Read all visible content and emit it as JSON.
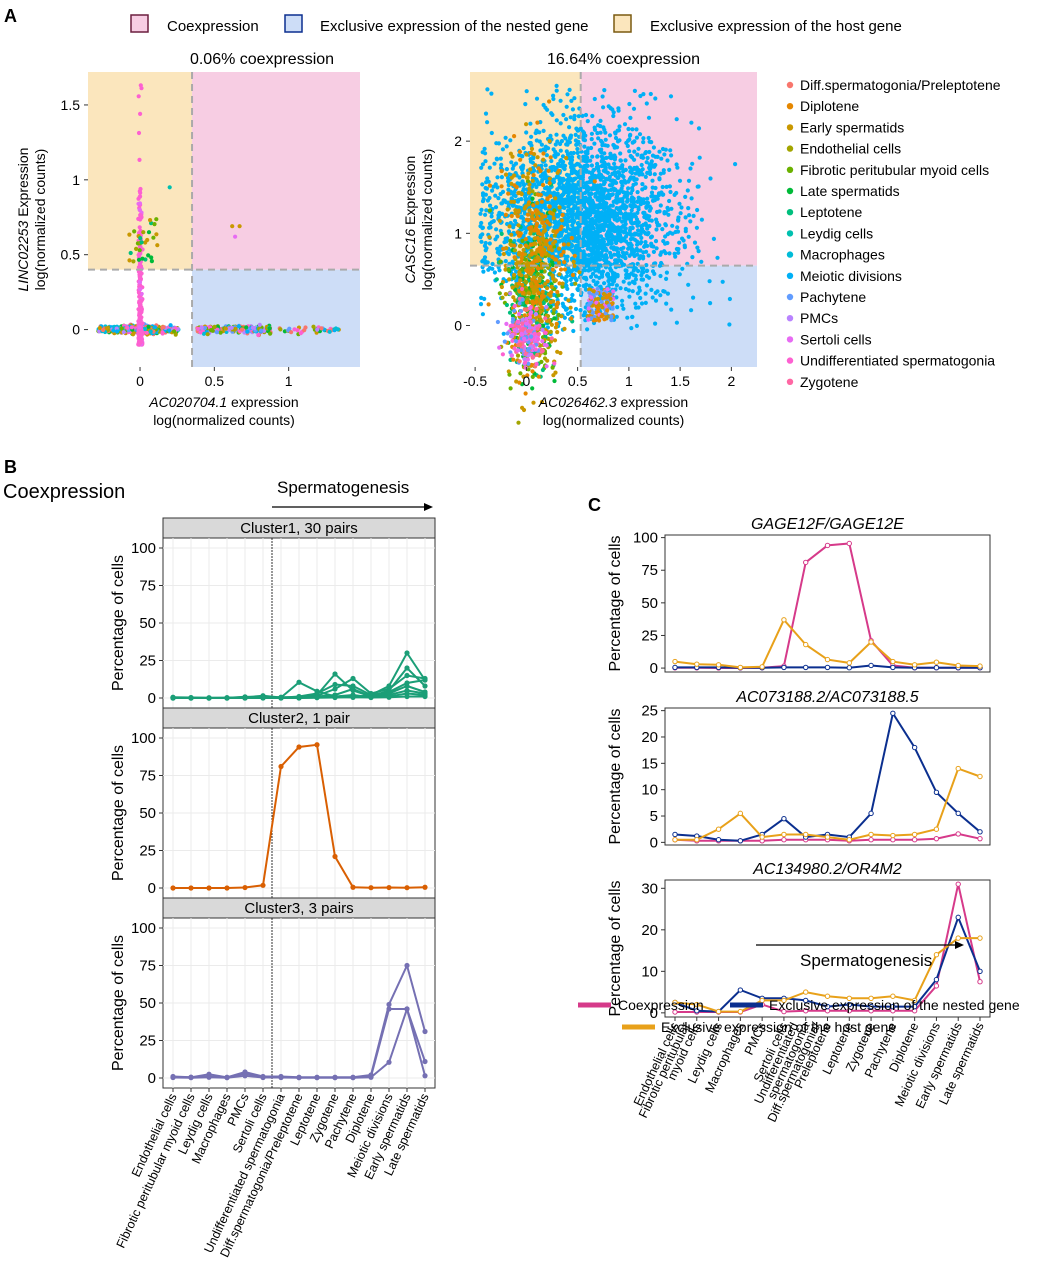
{
  "panel_labels": {
    "a": "A",
    "b": "B",
    "c": "C"
  },
  "colors": {
    "coexpression": "#d63a8a",
    "nested": "#0b2f8f",
    "host": "#e8a11a",
    "coexp_region": "#f7cde3",
    "nested_region": "#cdddf7",
    "host_region": "#fbe6bd",
    "cluster1": "#1b9e77",
    "cluster2": "#d95f02",
    "cluster3": "#7570b3",
    "strip": "#d9d9d9"
  },
  "legend_top": {
    "items": [
      "Coexpression",
      "Exclusive expression of the nested gene",
      "Exclusive expression of the host gene"
    ]
  },
  "cell_type_legend": {
    "items": [
      {
        "label": "Diff.spermatogonia/Preleptotene",
        "color": "#f8766d"
      },
      {
        "label": "Diplotene",
        "color": "#e58700"
      },
      {
        "label": "Early spermatids",
        "color": "#c99800"
      },
      {
        "label": "Endothelial cells",
        "color": "#a3a500"
      },
      {
        "label": "Fibrotic peritubular myoid cells",
        "color": "#6bb100"
      },
      {
        "label": "Late spermatids",
        "color": "#00ba38"
      },
      {
        "label": "Leptotene",
        "color": "#00bf7d"
      },
      {
        "label": "Leydig cells",
        "color": "#00c0af"
      },
      {
        "label": "Macrophages",
        "color": "#00bcd8"
      },
      {
        "label": "Meiotic divisions",
        "color": "#00b0f6"
      },
      {
        "label": "Pachytene",
        "color": "#619cff"
      },
      {
        "label": "PMCs",
        "color": "#b983ff"
      },
      {
        "label": "Sertoli cells",
        "color": "#e76bf3"
      },
      {
        "label": "Undifferentiated spermatogonia",
        "color": "#fd61d1"
      },
      {
        "label": "Zygotene",
        "color": "#ff67a4"
      }
    ]
  },
  "text": {
    "b_heading": "Coexpression",
    "spermatogenesis": "Spermatogenesis",
    "ylabel": "Percentage of cells",
    "bottom_legend": {
      "coexpression": "Coexpression",
      "nested": "Exclusive expression of the nested gene",
      "host": "Exclusive expression of the host gene"
    }
  },
  "chart_data": [
    {
      "id": "scatter1",
      "type": "scatter",
      "title": "0.06% coexpression",
      "xlabel_gene": "AC020704.1",
      "xlabel_suffix": " expression",
      "xlabel_line2": "log(normalized counts)",
      "ylabel_gene": "LINC02253",
      "ylabel_suffix": " Expression",
      "ylabel_line2": "log(normalized counts)",
      "xlim": [
        -0.35,
        1.48
      ],
      "ylim": [
        -0.25,
        1.72
      ],
      "xticks": [
        0,
        0.5,
        1
      ],
      "xtick_labels": [
        "0",
        "0.5",
        "1"
      ],
      "yticks": [
        0,
        0.5,
        1,
        1.5
      ],
      "ytick_labels": [
        "0",
        "0.5",
        "1",
        "1.5"
      ],
      "x_threshold": 0.35,
      "y_threshold": 0.4
    },
    {
      "id": "scatter2",
      "type": "scatter",
      "title": "16.64% coexpression",
      "xlabel_gene": "AC026462.3",
      "xlabel_suffix": " expression",
      "xlabel_line2": "log(normalized counts)",
      "ylabel_gene": "CASC16",
      "ylabel_suffix": " Expression",
      "ylabel_line2": "log(normalized counts)",
      "xlim": [
        -0.55,
        2.25
      ],
      "ylim": [
        -0.45,
        2.75
      ],
      "xticks": [
        -0.5,
        0,
        0.5,
        1,
        1.5,
        2
      ],
      "xtick_labels": [
        "-0.5",
        "0",
        "0.5",
        "1",
        "1.5",
        "2"
      ],
      "yticks": [
        0,
        1,
        2
      ],
      "ytick_labels": [
        "0",
        "1",
        "2"
      ],
      "x_threshold": 0.53,
      "y_threshold": 0.65
    },
    {
      "id": "panelB",
      "type": "line",
      "categories": [
        "Endothelial cells",
        "Fibrotic peritubular myoid cells",
        "Leydig cells",
        "Macrophages",
        "PMCs",
        "Sertoli cells",
        "Undifferentiated spermatogonia",
        "Diff.spermatogonia/Preleptotene",
        "Leptotene",
        "Zygotene",
        "Pachytene",
        "Diplotene",
        "Meiotic divisions",
        "Early spermatids",
        "Late spermatids"
      ],
      "ylim": [
        0,
        100
      ],
      "yticks": [
        0,
        25,
        50,
        75,
        100
      ],
      "ytick_labels": [
        "0",
        "25",
        "50",
        "75",
        "100"
      ],
      "vline_between": [
        5,
        6
      ],
      "facets": [
        {
          "strip": "Cluster1, 30 pairs",
          "color_key": "cluster1",
          "series": [
            {
              "values": [
                0.5,
                0.3,
                0.1,
                0.2,
                0.5,
                1.5,
                0.3,
                10.5,
                4.5,
                1,
                0.5,
                2,
                8,
                30,
                12
              ]
            },
            {
              "values": [
                0.2,
                0.2,
                0.1,
                0.1,
                0.8,
                0.6,
                0.5,
                0.5,
                2,
                16,
                5,
                1,
                5,
                20,
                8
              ]
            },
            {
              "values": [
                0.1,
                0.1,
                0.1,
                0.1,
                0.3,
                0.5,
                0.4,
                0.5,
                1.5,
                6,
                13,
                3,
                6,
                15,
                13
              ]
            },
            {
              "values": [
                0.1,
                0.1,
                0,
                0.1,
                0.2,
                0.3,
                0.2,
                1,
                3,
                9,
                8,
                2,
                4,
                10,
                12
              ]
            },
            {
              "values": [
                0.1,
                0,
                0,
                0,
                0.1,
                0.2,
                0.1,
                0.3,
                1,
                2,
                6,
                1,
                3,
                8,
                4
              ]
            },
            {
              "values": [
                0,
                0,
                0,
                0,
                0.1,
                0.2,
                0.1,
                0.2,
                0.5,
                1,
                2,
                0.5,
                2,
                5,
                3
              ]
            },
            {
              "values": [
                0,
                0,
                0,
                0,
                0,
                0.1,
                0,
                0.1,
                0.3,
                0.5,
                1,
                0.5,
                1,
                3,
                2
              ]
            },
            {
              "values": [
                0,
                0,
                0,
                0,
                0,
                0,
                0,
                0,
                0.2,
                0.3,
                0.5,
                0.3,
                0.5,
                1,
                1
              ]
            }
          ]
        },
        {
          "strip": "Cluster2, 1 pair",
          "color_key": "cluster2",
          "series": [
            {
              "values": [
                0,
                0,
                0,
                0,
                0.3,
                1.8,
                81,
                94,
                95.5,
                21,
                0.5,
                0.2,
                0.3,
                0.2,
                0.5
              ]
            }
          ]
        },
        {
          "strip": "Cluster3, 3 pairs",
          "color_key": "cluster3",
          "series": [
            {
              "values": [
                1,
                0.5,
                2.5,
                0.5,
                4,
                1,
                1,
                0.5,
                0.5,
                0.5,
                0.5,
                2,
                49,
                75,
                31
              ]
            },
            {
              "values": [
                0.5,
                0.5,
                1,
                0.3,
                3,
                0.5,
                0.5,
                0.3,
                0.3,
                0.3,
                0.3,
                1,
                46,
                46,
                11
              ]
            },
            {
              "values": [
                0.3,
                0.2,
                0.5,
                0.2,
                1.5,
                0.3,
                0.3,
                0.2,
                0.2,
                0.2,
                0.2,
                0.5,
                10.5,
                46,
                1.5
              ]
            }
          ]
        }
      ]
    },
    {
      "id": "panelC",
      "type": "line",
      "categories": [
        "Endothelial cells",
        "Fibrotic peritubular myoid cells",
        "Leydig cells",
        "Macrophages",
        "PMCs",
        "Sertoli cells",
        "Undifferentiated spermatogonia",
        "Diff.spermatogonia/ Preleptotene",
        "Leptotene",
        "Zygotene",
        "Pachytene",
        "Diplotene",
        "Meiotic divisions",
        "Early spermatids",
        "Late spermatids"
      ],
      "category_lines": [
        [
          "Endothelial cells"
        ],
        [
          "Fibrotic peritubular",
          "myoid cells"
        ],
        [
          "Leydig cells"
        ],
        [
          "Macrophages"
        ],
        [
          "PMCs"
        ],
        [
          "Sertoli cells"
        ],
        [
          "Undifferentiated",
          "spermatogonia"
        ],
        [
          "Diff.spermatogonia/",
          "Preleptotene"
        ],
        [
          "Leptotene"
        ],
        [
          "Zygotene"
        ],
        [
          "Pachytene"
        ],
        [
          "Diplotene"
        ],
        [
          "Meiotic divisions"
        ],
        [
          "Early spermatids"
        ],
        [
          "Late spermatids"
        ]
      ],
      "panels": [
        {
          "title": "GAGE12F/GAGE12E",
          "ylim": [
            -3,
            102
          ],
          "yticks": [
            0,
            25,
            50,
            75,
            100
          ],
          "ytick_labels": [
            "0",
            "25",
            "50",
            "75",
            "100"
          ],
          "series": [
            {
              "name": "Coexpression",
              "color_key": "coexpression",
              "values": [
                0.2,
                0.2,
                0.1,
                0.1,
                0.3,
                1.5,
                81,
                94,
                95.5,
                21,
                2,
                0.3,
                0.3,
                0.2,
                0.3
              ]
            },
            {
              "name": "Exclusive expression of the nested gene",
              "color_key": "nested",
              "values": [
                0.5,
                0.5,
                0.5,
                0.3,
                0.3,
                0.5,
                0.5,
                0.5,
                0.3,
                2,
                0.5,
                0.3,
                0.3,
                0.3,
                0.3
              ]
            },
            {
              "name": "Exclusive expression of the host gene",
              "color_key": "host",
              "values": [
                5,
                3,
                2.5,
                0.5,
                1,
                37,
                18,
                6.5,
                4,
                20,
                5,
                2.5,
                4.5,
                2,
                1.5
              ]
            }
          ]
        },
        {
          "title": "AC073188.2/AC073188.5",
          "ylim": [
            -0.5,
            25.5
          ],
          "yticks": [
            0,
            5,
            10,
            15,
            20,
            25
          ],
          "ytick_labels": [
            "0",
            "5",
            "10",
            "15",
            "20",
            "25"
          ],
          "series": [
            {
              "name": "Coexpression",
              "color_key": "coexpression",
              "values": [
                0.5,
                0.3,
                0.3,
                0.3,
                0.3,
                0.5,
                0.5,
                0.5,
                0.3,
                0.5,
                0.5,
                0.5,
                0.7,
                1.6,
                0.7
              ]
            },
            {
              "name": "Exclusive expression of the nested gene",
              "color_key": "nested",
              "values": [
                1.5,
                1.2,
                0.5,
                0.3,
                1.5,
                4.5,
                1.0,
                1.5,
                1.0,
                5.5,
                24.5,
                18,
                9.5,
                5.5,
                2
              ]
            },
            {
              "name": "Exclusive expression of the host gene",
              "color_key": "host",
              "values": [
                0.5,
                0.5,
                2.5,
                5.5,
                1,
                1.5,
                1.5,
                1.0,
                0.5,
                1.5,
                1.3,
                1.5,
                2.5,
                14,
                12.5
              ]
            }
          ]
        },
        {
          "title": "AC134980.2/OR4M2",
          "ylim": [
            -1,
            32
          ],
          "yticks": [
            0,
            10,
            20,
            30
          ],
          "ytick_labels": [
            "0",
            "10",
            "20",
            "30"
          ],
          "series": [
            {
              "name": "Coexpression",
              "color_key": "coexpression",
              "values": [
                0.2,
                0.2,
                0.2,
                0.2,
                2,
                0.3,
                0.5,
                0.5,
                0.5,
                0.5,
                0.5,
                0.5,
                6.5,
                31,
                7.5
              ]
            },
            {
              "name": "Exclusive expression of the nested gene",
              "color_key": "nested",
              "values": [
                2.5,
                0.5,
                0.3,
                5.5,
                3.5,
                3.5,
                3,
                1.5,
                2,
                1.5,
                1.5,
                1.5,
                8,
                23,
                10
              ]
            },
            {
              "name": "Exclusive expression of the host gene",
              "color_key": "host",
              "values": [
                2.5,
                2,
                0.3,
                0.3,
                3,
                3,
                5,
                4,
                3.5,
                3.5,
                4,
                3,
                14,
                18,
                18
              ]
            }
          ]
        }
      ]
    }
  ]
}
